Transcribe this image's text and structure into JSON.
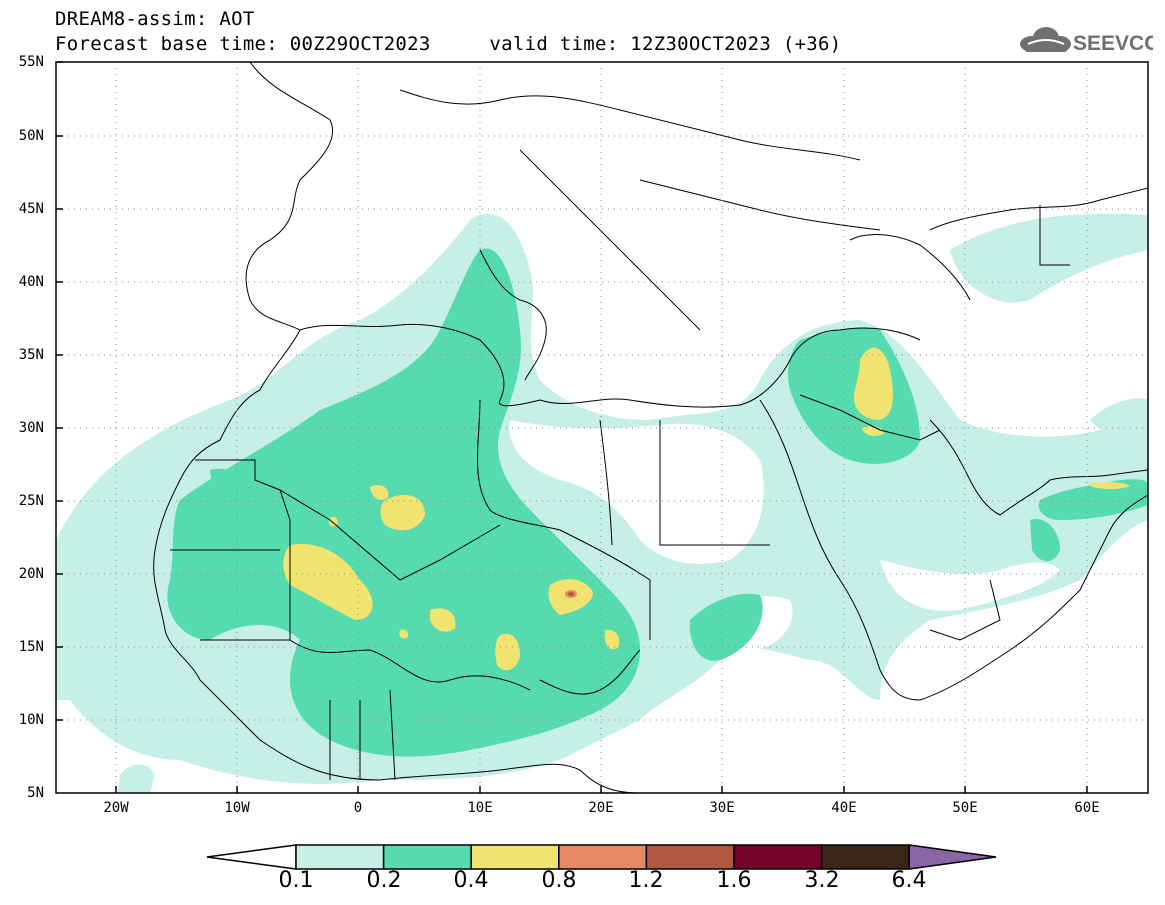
{
  "header": {
    "title": "DREAM8-assim: AOT",
    "base_time": "Forecast base time: 00Z29OCT2023",
    "valid_time": "valid time: 12Z30OCT2023 (+36)",
    "logo_text": "SEEVCCC"
  },
  "map": {
    "lat_ticks": [
      "55N",
      "50N",
      "45N",
      "40N",
      "35N",
      "30N",
      "25N",
      "20N",
      "15N",
      "10N",
      "5N"
    ],
    "lon_ticks": [
      "20W",
      "10W",
      "0",
      "10E",
      "20E",
      "30E",
      "40E",
      "50E",
      "60E"
    ],
    "grid": true,
    "colors": {
      "ocean_land_bg": "#ffffff",
      "aot_0_1": "#c6efe8",
      "aot_0_2": "#56dbaf",
      "aot_0_4": "#f0e370",
      "aot_0_8": "#e58a63",
      "aot_1_2": "#b05840",
      "aot_1_6": "#76002a",
      "aot_3_2": "#3a2516",
      "aot_6_4": "#8b66a6"
    }
  },
  "colorbar": {
    "labels": [
      "0.1",
      "0.2",
      "0.4",
      "0.8",
      "1.2",
      "1.6",
      "3.2",
      "6.4"
    ],
    "colors": [
      "#c6efe8",
      "#56dbaf",
      "#f0e370",
      "#e58a63",
      "#b05840",
      "#76002a",
      "#3a2516",
      "#8b66a6"
    ]
  }
}
